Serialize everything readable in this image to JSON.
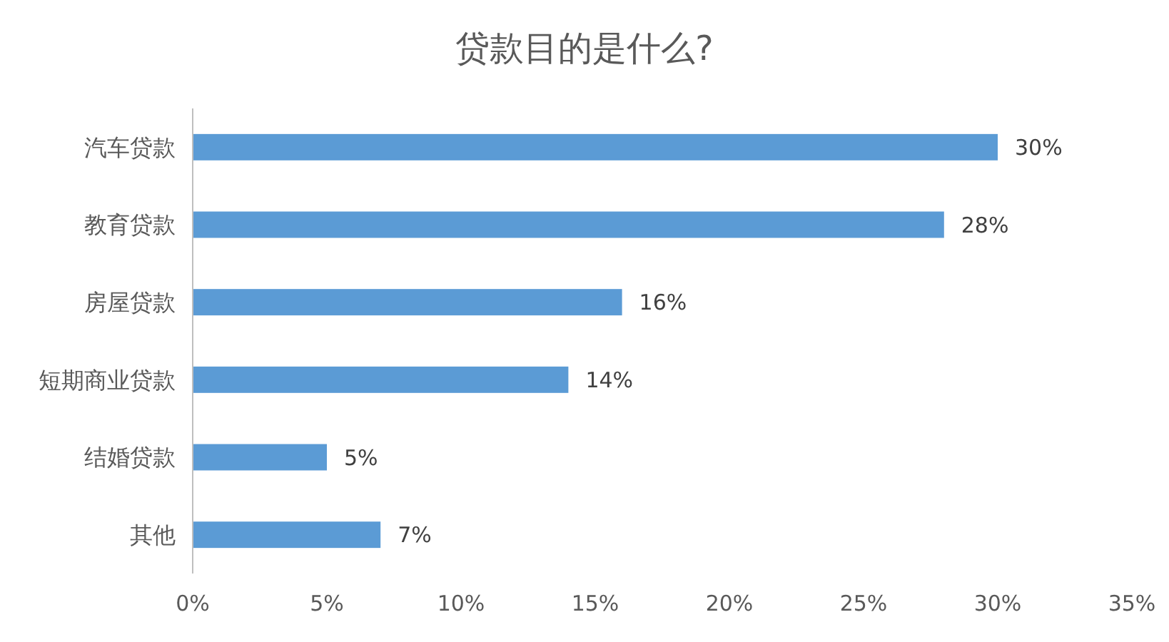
{
  "chart_data": {
    "type": "bar",
    "orientation": "horizontal",
    "title": "贷款目的是什么?",
    "categories": [
      "汽车贷款",
      "教育贷款",
      "房屋贷款",
      "短期商业贷款",
      "结婚贷款",
      "其他"
    ],
    "values": [
      30,
      28,
      16,
      14,
      5,
      7
    ],
    "value_labels": [
      "30%",
      "28%",
      "16%",
      "14%",
      "5%",
      "7%"
    ],
    "color": "#5b9bd5",
    "xlim": [
      0,
      35
    ],
    "xticks": [
      {
        "value": 0,
        "label": "0%"
      },
      {
        "value": 5,
        "label": "5%"
      },
      {
        "value": 10,
        "label": "10%"
      },
      {
        "value": 15,
        "label": "15%"
      },
      {
        "value": 20,
        "label": "20%"
      },
      {
        "value": 25,
        "label": "25%"
      },
      {
        "value": 30,
        "label": "30%"
      },
      {
        "value": 35,
        "label": "35%"
      }
    ],
    "grid": false
  }
}
